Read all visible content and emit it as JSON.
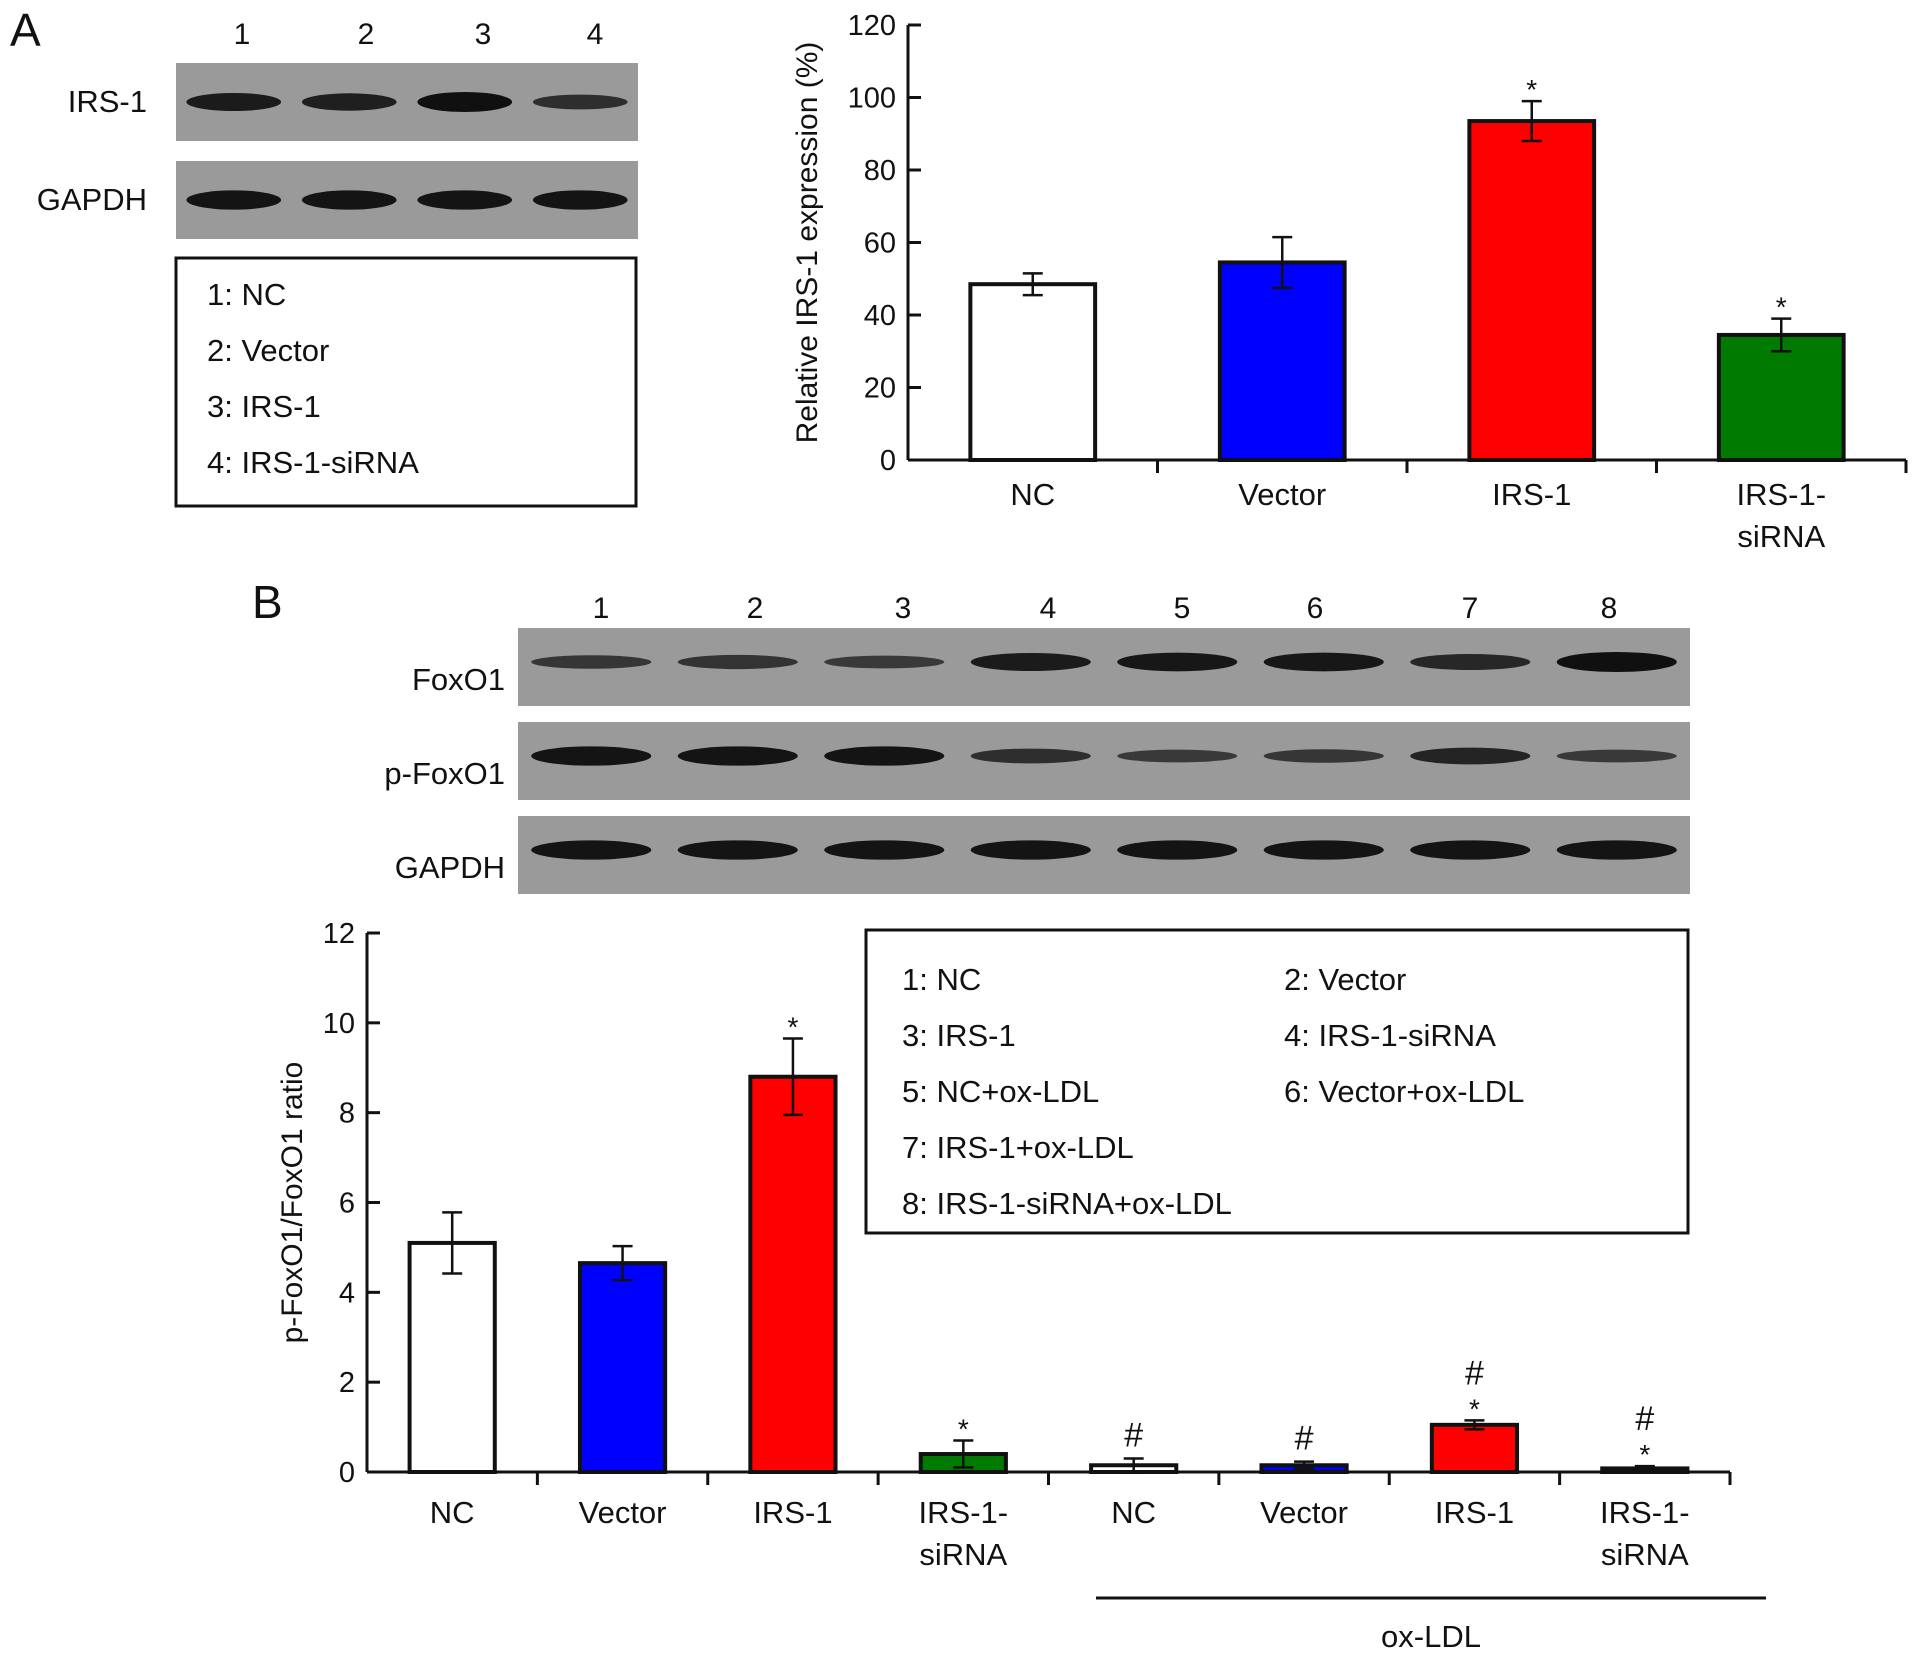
{
  "panels": {
    "a": {
      "letter": "A",
      "lanes": [
        "1",
        "2",
        "3",
        "4"
      ],
      "blots": [
        {
          "label": "IRS-1",
          "intensities": [
            0.85,
            0.8,
            1.0,
            0.6
          ]
        },
        {
          "label": "GAPDH",
          "intensities": [
            0.95,
            0.95,
            0.95,
            0.95
          ]
        }
      ],
      "legend": [
        "1: NC",
        "2: Vector",
        "3: IRS-1",
        "4: IRS-1-siRNA"
      ]
    },
    "b": {
      "letter": "B",
      "lanes": [
        "1",
        "2",
        "3",
        "4",
        "5",
        "6",
        "7",
        "8"
      ],
      "blots": [
        {
          "label": "FoxO1",
          "intensities": [
            0.5,
            0.55,
            0.45,
            0.85,
            0.9,
            0.9,
            0.7,
            1.0
          ]
        },
        {
          "label": "p-FoxO1",
          "intensities": [
            0.95,
            0.95,
            0.95,
            0.6,
            0.45,
            0.5,
            0.75,
            0.45
          ]
        },
        {
          "label": "GAPDH",
          "intensities": [
            0.95,
            0.95,
            0.95,
            0.95,
            0.95,
            0.95,
            0.95,
            0.95
          ]
        }
      ],
      "legend": [
        [
          "1: NC",
          "2: Vector"
        ],
        [
          "3: IRS-1",
          "4: IRS-1-siRNA"
        ],
        [
          "5: NC+ox-LDL",
          "6: Vector+ox-LDL"
        ],
        [
          "7: IRS-1+ox-LDL",
          ""
        ],
        [
          "8: IRS-1-siRNA+ox-LDL",
          ""
        ]
      ],
      "group_label": "ox-LDL"
    }
  },
  "colors": {
    "white": "#ffffff",
    "blue": "#0000ff",
    "red": "#ff0000",
    "green": "#007a00",
    "axis": "#111111",
    "blot_bg": "#9a9a9a",
    "band": "#101010"
  },
  "chart_data": [
    {
      "type": "bar",
      "title": "",
      "xlabel": "",
      "ylabel": "Relative IRS-1 expression (%)",
      "ylim": [
        0,
        120
      ],
      "yticks": [
        0,
        20,
        40,
        60,
        80,
        100,
        120
      ],
      "categories": [
        "NC",
        "Vector",
        "IRS-1",
        "IRS-1-\nsiRNA"
      ],
      "values": [
        48.5,
        54.5,
        93.5,
        34.5
      ],
      "errors": [
        3,
        7,
        5.5,
        4.5
      ],
      "markers": [
        "",
        "",
        "*",
        "*"
      ],
      "bar_colors": [
        "#ffffff",
        "#0000ff",
        "#ff0000",
        "#007a00"
      ]
    },
    {
      "type": "bar",
      "title": "",
      "xlabel": "",
      "ylabel": "p-FoxO1/FoxO1 ratio",
      "ylim": [
        0,
        12
      ],
      "yticks": [
        0,
        2,
        4,
        6,
        8,
        10,
        12
      ],
      "categories": [
        "NC",
        "Vector",
        "IRS-1",
        "IRS-1-\nsiRNA",
        "NC",
        "Vector",
        "IRS-1",
        "IRS-1-\nsiRNA"
      ],
      "values": [
        5.1,
        4.65,
        8.8,
        0.4,
        0.15,
        0.15,
        1.05,
        0.08
      ],
      "errors": [
        0.68,
        0.38,
        0.85,
        0.3,
        0.15,
        0.08,
        0.1,
        0.05
      ],
      "stars": [
        "",
        "",
        "*",
        "*",
        "",
        "",
        "*",
        "*"
      ],
      "hashes": [
        "",
        "",
        "",
        "",
        "#",
        "#",
        "#",
        "#"
      ],
      "bar_colors": [
        "#ffffff",
        "#0000ff",
        "#ff0000",
        "#007a00",
        "#ffffff",
        "#0000ff",
        "#ff0000",
        "#007a00"
      ]
    }
  ]
}
